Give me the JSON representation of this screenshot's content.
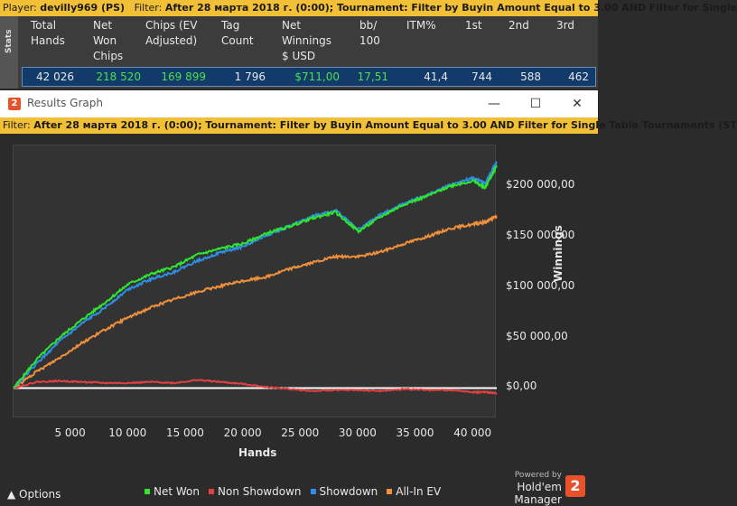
{
  "top_filter": {
    "player_label": "Player:",
    "player_value": "devilly969 (PS)",
    "filter_label": "Filter:",
    "filter_value": "After 28 марта 2018 г. (0:00); Tournament: Filter by Buyin Amount Equal to 3.00 AND Filter for Single"
  },
  "stats": {
    "tab_label": "Stats",
    "headers": [
      "Total\nHands",
      "Net\nWon\nChips",
      "Chips (EV\nAdjusted)",
      "Tag\nCount",
      "Net\nWinnings\n$ USD",
      "bb/\n100",
      "ITM%",
      "1st",
      "2nd",
      "3rd"
    ],
    "row": [
      "42 026",
      "218 520",
      "169 899",
      "1 796",
      "$711,00",
      "17,51",
      "41,4",
      "744",
      "588",
      "462"
    ]
  },
  "window": {
    "title": "Results Graph",
    "logo_text": "2",
    "minimize": "—",
    "maximize": "☐",
    "close": "✕"
  },
  "graph_filter": {
    "filter_label": "Filter:",
    "filter_value": "After 28 марта 2018 г. (0:00); Tournament: Filter by Buyin Amount Equal to 3.00 AND Filter for Single Table Tournaments (ST"
  },
  "chart_data": {
    "type": "line",
    "xlabel": "Hands",
    "ylabel": "Winnings",
    "xlim": [
      0,
      42026
    ],
    "ylim": [
      -30000,
      240000
    ],
    "x_ticks": [
      "5 000",
      "10 000",
      "15 000",
      "20 000",
      "25 000",
      "30 000",
      "35 000",
      "40 000"
    ],
    "x_tick_values": [
      5000,
      10000,
      15000,
      20000,
      25000,
      30000,
      35000,
      40000
    ],
    "y_ticks": [
      "$0,00",
      "$50 000,00",
      "$100 000,00",
      "$150 000,00",
      "$200 000,00"
    ],
    "y_tick_values": [
      0,
      50000,
      100000,
      150000,
      200000
    ],
    "x": [
      0,
      2000,
      4000,
      6000,
      8000,
      10000,
      12000,
      14000,
      16000,
      18000,
      20000,
      22000,
      24000,
      26000,
      28000,
      30000,
      32000,
      34000,
      36000,
      38000,
      40000,
      41000,
      42026
    ],
    "series": [
      {
        "name": "Net Won",
        "color": "#2ee62e",
        "values": [
          0,
          28000,
          50000,
          68000,
          85000,
          103000,
          113000,
          120000,
          132000,
          138000,
          143000,
          153000,
          160000,
          168000,
          174000,
          155000,
          170000,
          182000,
          190000,
          200000,
          205000,
          198000,
          220000
        ]
      },
      {
        "name": "Non Showdown",
        "color": "#e04040",
        "values": [
          0,
          6000,
          7000,
          6000,
          5000,
          5000,
          6000,
          5000,
          8000,
          6000,
          4000,
          1000,
          -1000,
          -3000,
          -2000,
          -2000,
          -3000,
          -1000,
          -2000,
          -2000,
          -4000,
          -4000,
          -5000
        ]
      },
      {
        "name": "Showdown",
        "color": "#2f8de4",
        "values": [
          0,
          24000,
          46000,
          64000,
          80000,
          98000,
          108000,
          115000,
          126000,
          134000,
          140000,
          151000,
          160000,
          170000,
          176000,
          157000,
          172000,
          183000,
          191000,
          201000,
          208000,
          202000,
          224000
        ]
      },
      {
        "name": "All-In EV",
        "color": "#f0903a",
        "values": [
          0,
          16000,
          30000,
          45000,
          58000,
          70000,
          80000,
          88000,
          95000,
          101000,
          106000,
          110000,
          118000,
          124000,
          130000,
          130000,
          135000,
          143000,
          150000,
          158000,
          162000,
          164000,
          170000
        ]
      }
    ]
  },
  "legend": [
    "Net Won",
    "Non Showdown",
    "Showdown",
    "All-In EV"
  ],
  "footer": {
    "options": "Options",
    "powered": "Powered by",
    "brand": "Hold'em Manager",
    "brand_logo": "2"
  }
}
